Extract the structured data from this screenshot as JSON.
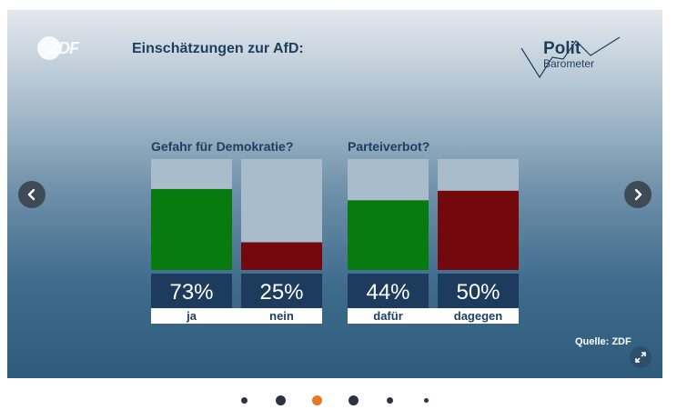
{
  "slide": {
    "title": "Einschätzungen zur AfD:",
    "logo": "ZDF",
    "brand_polit": "Polit",
    "brand_barometer": "Barometer",
    "source": "Quelle: ZDF",
    "colors": {
      "green": "#077a10",
      "red": "#73090c",
      "label_box": "#1d3b5c",
      "bar_background": "#a8bccb"
    }
  },
  "chart_data": [
    {
      "type": "bar",
      "title": "Gefahr für Demokratie?",
      "categories": [
        "ja",
        "nein"
      ],
      "values": [
        73,
        25
      ],
      "value_labels": [
        "73%",
        "25%"
      ],
      "ylim": [
        0,
        100
      ],
      "colors": [
        "#077a10",
        "#73090c"
      ]
    },
    {
      "type": "bar",
      "title": "Parteiverbot?",
      "categories": [
        "dafür",
        "dagegen"
      ],
      "values": [
        44,
        50
      ],
      "value_labels": [
        "44%",
        "50%"
      ],
      "ylim": [
        0,
        70
      ],
      "colors": [
        "#077a10",
        "#73090c"
      ]
    }
  ],
  "navigation": {
    "prev_icon": "chevron-left-icon",
    "next_icon": "chevron-right-icon",
    "expand_icon": "expand-icon"
  },
  "pagination": {
    "active_index": 2,
    "count": 6,
    "active_color": "#e87722"
  }
}
